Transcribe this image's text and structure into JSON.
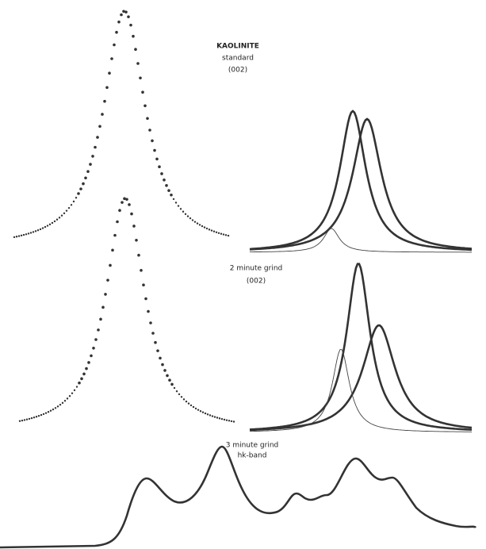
{
  "labels": {
    "kaolinite": "KAOLINITE",
    "standard": "standard",
    "standard_reflection": "(002)",
    "two_minute": "2 minute grind",
    "two_minute_reflection": "(002)",
    "three_minute": "3 minute grind",
    "hk_band": "hk-band"
  }
}
